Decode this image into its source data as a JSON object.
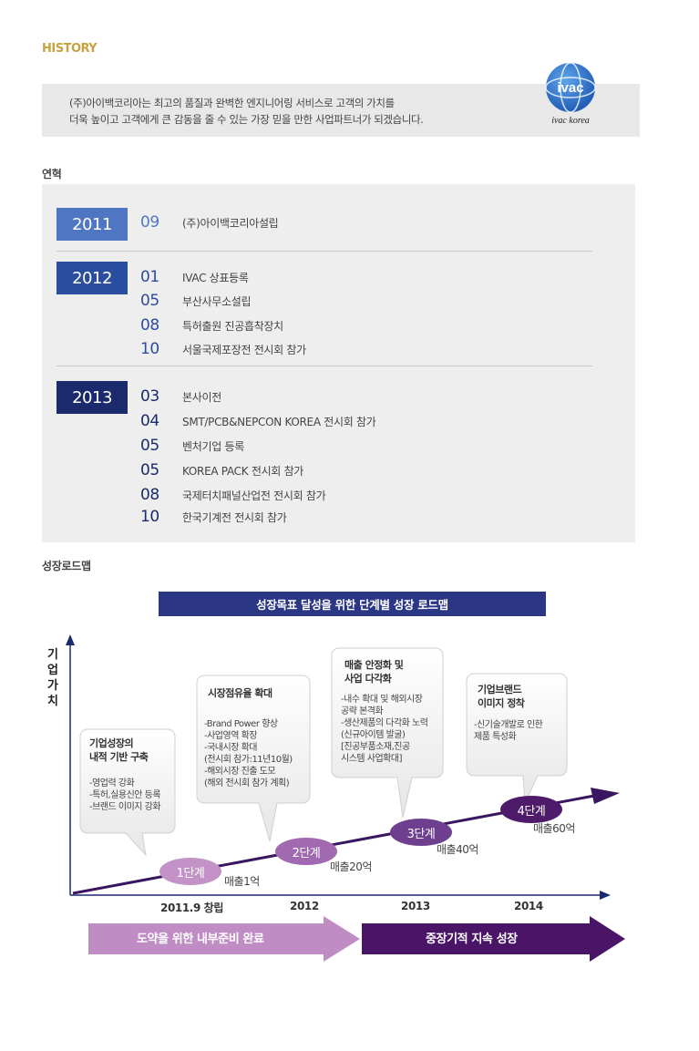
{
  "header": {
    "label": "HISTORY"
  },
  "intro": {
    "line1": "(주)아이백코리아는 최고의 품질과 완벽한 엔지니어링 서비스로 고객의 가치를",
    "line2": "더욱 높이고 고객에게  큰 감동을 줄 수 있는 가장 믿을 만한 사업파트너가 되겠습니다.",
    "logo_text": "ivac",
    "logo_sub": "ivac korea"
  },
  "history": {
    "title": "연혁",
    "years": [
      {
        "year": "2011",
        "color": "#4e76c2",
        "entries": [
          {
            "month": "09",
            "text": "(주)아이백코리아설립"
          }
        ]
      },
      {
        "year": "2012",
        "color": "#2a4da0",
        "entries": [
          {
            "month": "01",
            "text": "IVAC 상표등록"
          },
          {
            "month": "05",
            "text": "부산사무소설립"
          },
          {
            "month": "08",
            "text": "특허출원 진공흡착장치"
          },
          {
            "month": "10",
            "text": "서울국제포장전 전시회 참가"
          }
        ]
      },
      {
        "year": "2013",
        "color": "#1a2a6c",
        "entries": [
          {
            "month": "03",
            "text": "본사이전"
          },
          {
            "month": "04",
            "text": "SMT/PCB&NEPCON KOREA 전시회 참가"
          },
          {
            "month": "05",
            "text": "벤처기업 등록"
          },
          {
            "month": "05",
            "text": "KOREA PACK 전시회 참가"
          },
          {
            "month": "08",
            "text": "국제터치패널산업전 전시회 참가"
          },
          {
            "month": "10",
            "text": "한국기계전 전시회 참가"
          }
        ]
      }
    ]
  },
  "roadmap": {
    "title": "성장로드맵",
    "banner": "성장목표 달성을 위한 단계별 성장 로드맵",
    "y_label": "기업가치",
    "bubbles": [
      {
        "title": "기업성장의\n내적 기반 구축",
        "text": "-영업력 강화\n-특허,실용신안 등록\n-브랜드 이미지 강화"
      },
      {
        "title": "시장점유율 확대",
        "text": "-Brand Power 향상\n-사업영역 확장\n-국내시장 확대\n (전시회 참가:11년10월)\n-해외시장 진출 도모\n (해외 전시회 참가 계획)"
      },
      {
        "title": "매출 안정화 및\n사업 다각화",
        "text": "-내수 확대 및 해외시장\n 공략 본격화\n-생산제품의 다각화 노력\n (신규아이템 발굴)\n[진공부품소재,진공\n시스템 사업확대]"
      },
      {
        "title": "기업브랜드\n이미지 정착",
        "text": "-신기술개발로 인한\n 제품 특성화"
      }
    ],
    "stages": [
      {
        "label": "1단계",
        "sales": "매출1억",
        "color": "#c392c6"
      },
      {
        "label": "2단계",
        "sales": "매출20억",
        "color": "#a16ab0"
      },
      {
        "label": "3단계",
        "sales": "매출40억",
        "color": "#6d3f8e"
      },
      {
        "label": "4단계",
        "sales": "매출60억",
        "color": "#4e1a6a"
      }
    ],
    "x_ticks": [
      "2011.9 창립",
      "2012",
      "2013",
      "2014"
    ],
    "bottom_arrows": [
      {
        "label": "도약을 위한 내부준비 완료",
        "color": "#c08cc4"
      },
      {
        "label": "중장기적 지속 성장",
        "color": "#4a1467"
      }
    ]
  }
}
